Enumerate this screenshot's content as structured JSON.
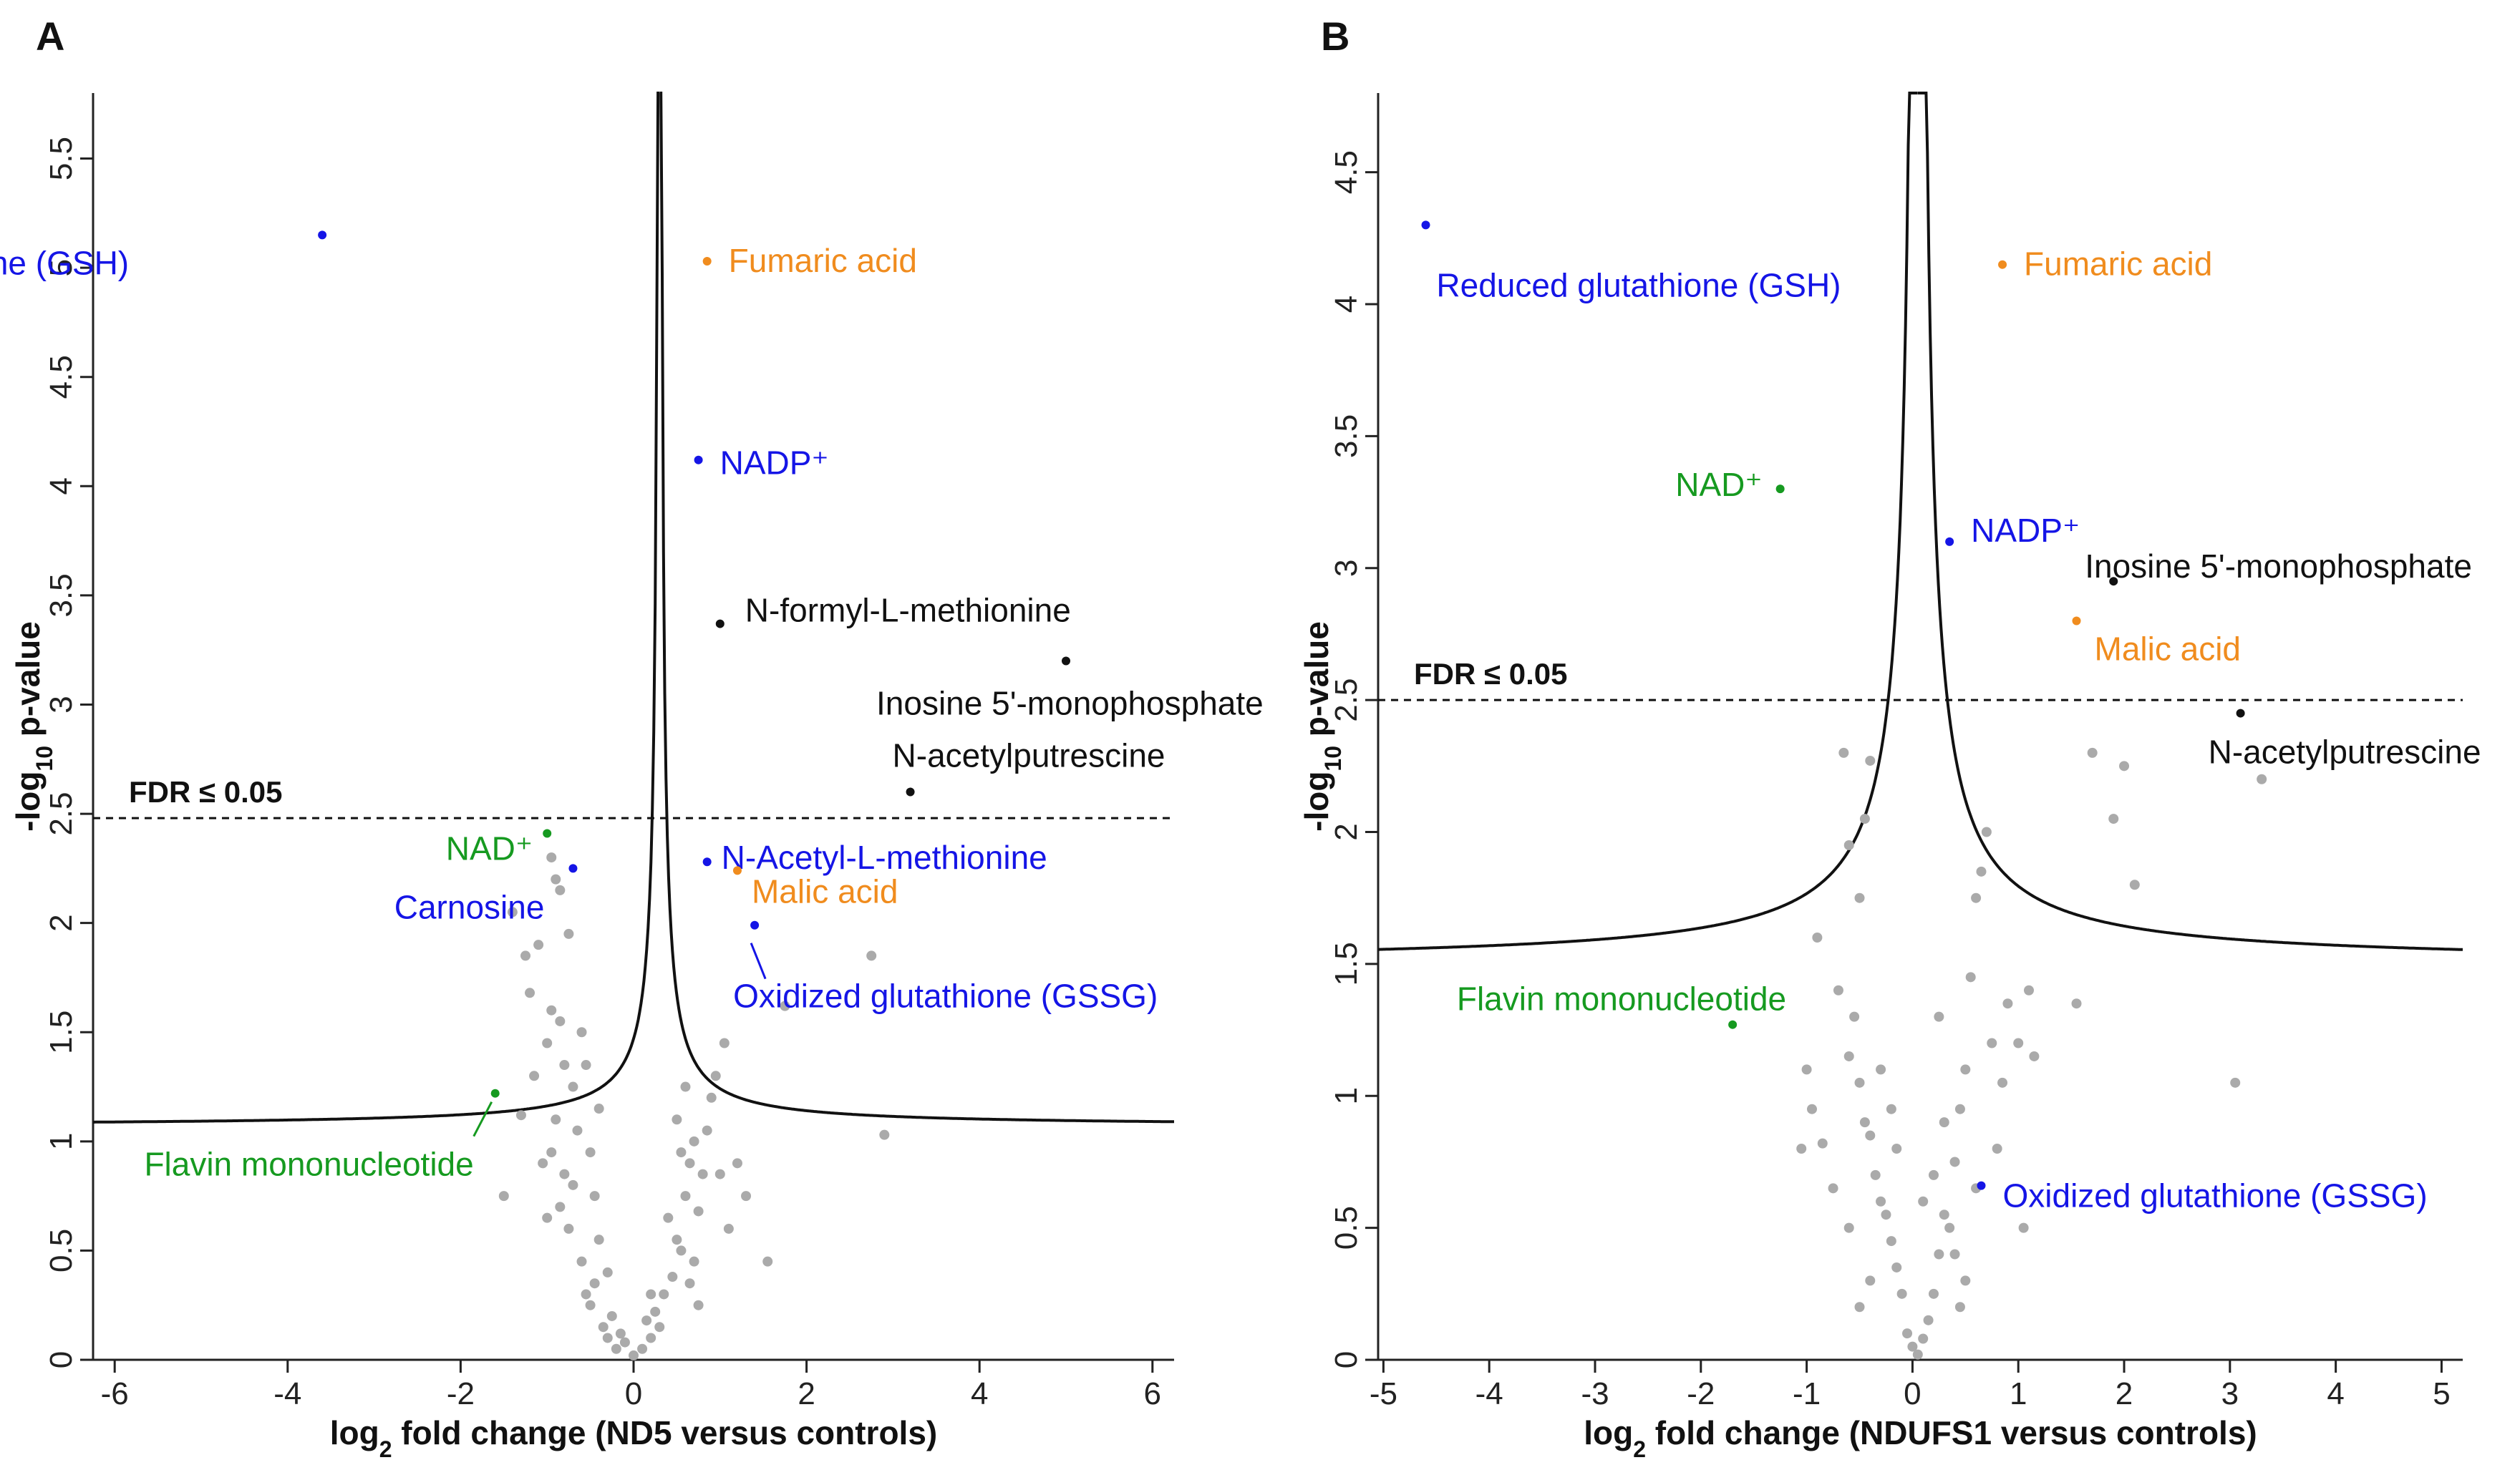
{
  "colors": {
    "background": "#ffffff",
    "axis": "#222222",
    "curve": "#111111",
    "grey": "#aaaaaa",
    "blue": "#1515e6",
    "orange": "#f08c1e",
    "green": "#169a20",
    "black": "#111111"
  },
  "chart_data": [
    {
      "type": "scatter",
      "panel": "A",
      "xlabel_main": "log",
      "xlabel_sub": "2",
      "xlabel_rest": " fold change (ND5 versus controls)",
      "ylabel_main": "-log",
      "ylabel_sub": "10",
      "ylabel_rest": " p-value",
      "xlim": [
        -6.25,
        6.25
      ],
      "ylim": [
        0,
        5.8
      ],
      "xticks": [
        "-6",
        "-4",
        "-2",
        "0",
        "2",
        "4",
        "6"
      ],
      "xtick_values": [
        -6,
        -4,
        -2,
        0,
        2,
        4,
        6
      ],
      "yticks": [
        "0",
        "0.5",
        "1",
        "1.5",
        "2",
        "2.5",
        "3",
        "3.5",
        "4",
        "4.5",
        "5",
        "5.5"
      ],
      "ytick_values": [
        0,
        0.5,
        1,
        1.5,
        2,
        2.5,
        3,
        3.5,
        4,
        4.5,
        5,
        5.5
      ],
      "threshold": {
        "y": 2.48,
        "label": "FDR ≤ 0.05"
      },
      "curve": {
        "x0": 0.3,
        "a": 0.12,
        "b": 1.07
      },
      "highlighted": [
        {
          "label": "Reduced glutathione (GSH)",
          "color": "blue",
          "x": -3.6,
          "y": 5.15
        },
        {
          "label": "Fumaric acid",
          "color": "orange",
          "x": 0.85,
          "y": 5.03
        },
        {
          "label": "NADP⁺",
          "color": "blue",
          "x": 0.75,
          "y": 4.12
        },
        {
          "label": "N-formyl-L-methionine",
          "color": "black",
          "x": 1.0,
          "y": 3.37
        },
        {
          "label": "Inosine 5'-monophosphate",
          "color": "black",
          "x": 5.0,
          "y": 3.2
        },
        {
          "label": "N-acetylputrescine",
          "color": "black",
          "x": 3.2,
          "y": 2.6
        },
        {
          "label": "NAD⁺",
          "color": "green",
          "x": -1.0,
          "y": 2.41
        },
        {
          "label": "Carnosine",
          "color": "blue",
          "x": -0.7,
          "y": 2.25
        },
        {
          "label": "N-Acetyl-L-methionine",
          "color": "blue",
          "x": 0.85,
          "y": 2.28
        },
        {
          "label": "Malic acid",
          "color": "orange",
          "x": 1.2,
          "y": 2.24
        },
        {
          "label": "Oxidized glutathione (GSSG)",
          "color": "blue",
          "x": 1.4,
          "y": 1.99
        },
        {
          "label": "Flavin mononucleotide",
          "color": "green",
          "x": -1.6,
          "y": 1.22
        }
      ],
      "grey_points": [
        [
          -1.4,
          2.05
        ],
        [
          -1.25,
          1.85
        ],
        [
          -1.1,
          1.9
        ],
        [
          -1.2,
          1.68
        ],
        [
          -1.5,
          0.75
        ],
        [
          -1.3,
          1.12
        ],
        [
          -1.0,
          1.45
        ],
        [
          -0.95,
          1.6
        ],
        [
          -0.85,
          1.55
        ],
        [
          -0.8,
          1.35
        ],
        [
          -0.9,
          2.2
        ],
        [
          -0.95,
          2.3
        ],
        [
          -0.85,
          2.15
        ],
        [
          -0.75,
          1.95
        ],
        [
          -1.05,
          0.9
        ],
        [
          -0.9,
          1.1
        ],
        [
          -0.95,
          0.95
        ],
        [
          -0.8,
          0.85
        ],
        [
          -0.85,
          0.7
        ],
        [
          -0.75,
          0.6
        ],
        [
          -0.7,
          1.25
        ],
        [
          -0.65,
          1.05
        ],
        [
          -0.6,
          0.45
        ],
        [
          -0.55,
          0.3
        ],
        [
          -0.5,
          0.25
        ],
        [
          -0.45,
          0.35
        ],
        [
          -0.4,
          0.55
        ],
        [
          -0.35,
          0.15
        ],
        [
          -0.3,
          0.1
        ],
        [
          -0.25,
          0.2
        ],
        [
          -0.2,
          0.05
        ],
        [
          -0.15,
          0.12
        ],
        [
          -0.1,
          0.08
        ],
        [
          0.0,
          0.02
        ],
        [
          0.1,
          0.05
        ],
        [
          0.15,
          0.18
        ],
        [
          0.2,
          0.1
        ],
        [
          0.25,
          0.22
        ],
        [
          0.3,
          0.15
        ],
        [
          0.35,
          0.3
        ],
        [
          0.45,
          0.38
        ],
        [
          0.5,
          0.55
        ],
        [
          0.55,
          0.5
        ],
        [
          0.6,
          0.75
        ],
        [
          0.65,
          0.9
        ],
        [
          0.7,
          1.0
        ],
        [
          0.75,
          0.68
        ],
        [
          0.8,
          0.85
        ],
        [
          0.85,
          1.05
        ],
        [
          0.9,
          1.2
        ],
        [
          0.95,
          1.3
        ],
        [
          0.6,
          1.25
        ],
        [
          0.55,
          0.95
        ],
        [
          0.7,
          0.45
        ],
        [
          0.65,
          0.35
        ],
        [
          0.75,
          0.25
        ],
        [
          1.05,
          1.45
        ],
        [
          1.1,
          0.6
        ],
        [
          1.2,
          0.9
        ],
        [
          1.3,
          0.75
        ],
        [
          1.55,
          0.45
        ],
        [
          1.75,
          1.62
        ],
        [
          2.9,
          1.03
        ],
        [
          2.75,
          1.85
        ],
        [
          -0.6,
          1.5
        ],
        [
          -0.4,
          1.15
        ],
        [
          -0.45,
          0.75
        ],
        [
          -0.5,
          0.95
        ],
        [
          -1.15,
          1.3
        ],
        [
          -0.7,
          0.8
        ],
        [
          0.4,
          0.65
        ],
        [
          0.5,
          1.1
        ],
        [
          1.0,
          0.85
        ],
        [
          -0.3,
          0.4
        ],
        [
          0.2,
          0.3
        ],
        [
          -1.0,
          0.65
        ],
        [
          -0.55,
          1.35
        ]
      ]
    },
    {
      "type": "scatter",
      "panel": "B",
      "xlabel_main": "log",
      "xlabel_sub": "2",
      "xlabel_rest": " fold change (NDUFS1 versus controls)",
      "ylabel_main": "-log",
      "ylabel_sub": "10",
      "ylabel_rest": " p-value",
      "xlim": [
        -5.05,
        5.2
      ],
      "ylim": [
        0,
        4.8
      ],
      "xticks": [
        "-5",
        "-4",
        "-3",
        "-2",
        "-1",
        "0",
        "1",
        "2",
        "3",
        "4",
        "5"
      ],
      "xtick_values": [
        -5,
        -4,
        -3,
        -2,
        -1,
        0,
        1,
        2,
        3,
        4,
        5
      ],
      "yticks": [
        "0",
        "0.5",
        "1",
        "1.5",
        "2",
        "2.5",
        "3",
        "3.5",
        "4",
        "4.5"
      ],
      "ytick_values": [
        0,
        0.5,
        1,
        1.5,
        2,
        2.5,
        3,
        3.5,
        4,
        4.5
      ],
      "threshold": {
        "y": 2.5,
        "label": "FDR ≤ 0.05"
      },
      "curve": {
        "x0": 0.05,
        "a": 0.28,
        "b": 1.5
      },
      "highlighted": [
        {
          "label": "Reduced glutathione (GSH)",
          "color": "blue",
          "x": -4.6,
          "y": 4.3
        },
        {
          "label": "Fumaric acid",
          "color": "orange",
          "x": 0.85,
          "y": 4.15
        },
        {
          "label": "NAD⁺",
          "color": "green",
          "x": -1.25,
          "y": 3.3
        },
        {
          "label": "NADP⁺",
          "color": "blue",
          "x": 0.35,
          "y": 3.1
        },
        {
          "label": "Inosine 5'-monophosphate",
          "color": "black",
          "x": 1.9,
          "y": 2.95
        },
        {
          "label": "Malic acid",
          "color": "orange",
          "x": 1.55,
          "y": 2.8
        },
        {
          "label": "N-acetylputrescine",
          "color": "black",
          "x": 3.1,
          "y": 2.45
        },
        {
          "label": "Flavin mononucleotide",
          "color": "green",
          "x": -1.7,
          "y": 1.27
        },
        {
          "label": "Oxidized glutathione (GSSG)",
          "color": "blue",
          "x": 0.65,
          "y": 0.66
        }
      ],
      "grey_points": [
        [
          -0.65,
          2.3
        ],
        [
          -0.4,
          2.27
        ],
        [
          -0.45,
          2.05
        ],
        [
          -0.5,
          1.75
        ],
        [
          -0.6,
          1.95
        ],
        [
          -0.7,
          1.4
        ],
        [
          -1.0,
          1.1
        ],
        [
          -0.95,
          0.95
        ],
        [
          -1.05,
          0.8
        ],
        [
          -0.85,
          0.82
        ],
        [
          -0.55,
          1.3
        ],
        [
          -0.6,
          1.15
        ],
        [
          -0.5,
          1.05
        ],
        [
          -0.45,
          0.9
        ],
        [
          -0.4,
          0.85
        ],
        [
          -0.35,
          0.7
        ],
        [
          -0.3,
          0.6
        ],
        [
          -0.25,
          0.55
        ],
        [
          -0.2,
          0.45
        ],
        [
          -0.15,
          0.35
        ],
        [
          -0.1,
          0.25
        ],
        [
          -0.05,
          0.1
        ],
        [
          0.0,
          0.05
        ],
        [
          0.05,
          0.02
        ],
        [
          0.1,
          0.08
        ],
        [
          0.15,
          0.15
        ],
        [
          0.2,
          0.25
        ],
        [
          0.25,
          0.4
        ],
        [
          0.3,
          0.55
        ],
        [
          0.35,
          0.5
        ],
        [
          0.4,
          0.75
        ],
        [
          0.45,
          0.95
        ],
        [
          0.5,
          1.1
        ],
        [
          0.55,
          1.45
        ],
        [
          0.6,
          1.75
        ],
        [
          0.65,
          1.85
        ],
        [
          0.7,
          2.0
        ],
        [
          0.75,
          1.2
        ],
        [
          0.8,
          0.8
        ],
        [
          0.9,
          1.35
        ],
        [
          1.0,
          1.2
        ],
        [
          1.05,
          0.5
        ],
        [
          1.1,
          1.4
        ],
        [
          1.15,
          1.15
        ],
        [
          1.55,
          1.35
        ],
        [
          1.7,
          2.3
        ],
        [
          1.9,
          2.05
        ],
        [
          2.0,
          2.25
        ],
        [
          2.1,
          1.8
        ],
        [
          3.05,
          1.05
        ],
        [
          3.3,
          2.2
        ],
        [
          0.6,
          0.65
        ],
        [
          -0.3,
          1.1
        ],
        [
          -0.2,
          0.95
        ],
        [
          0.3,
          0.9
        ],
        [
          0.4,
          0.4
        ],
        [
          -0.4,
          0.3
        ],
        [
          0.5,
          0.3
        ],
        [
          0.2,
          0.7
        ],
        [
          -0.6,
          0.5
        ],
        [
          -0.75,
          0.65
        ],
        [
          0.85,
          1.05
        ],
        [
          0.25,
          1.3
        ],
        [
          -0.15,
          0.8
        ],
        [
          0.1,
          0.6
        ],
        [
          -0.5,
          0.2
        ],
        [
          0.45,
          0.2
        ],
        [
          -0.9,
          1.6
        ]
      ]
    }
  ]
}
